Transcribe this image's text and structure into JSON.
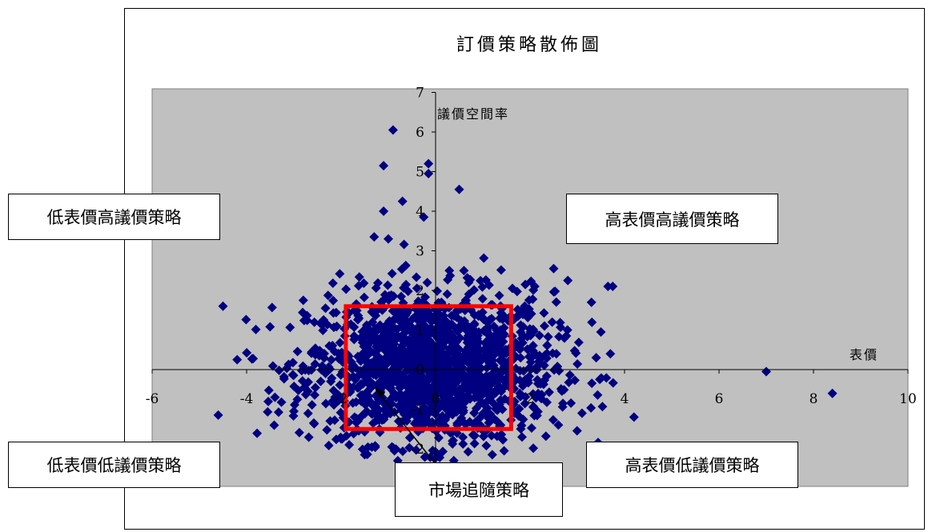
{
  "chart_data": {
    "type": "scatter",
    "title": "訂價策略散佈圖",
    "xlabel": "表價",
    "ylabel": "議價空間率",
    "xlim": [
      -6,
      10
    ],
    "ylim": [
      -3,
      7
    ],
    "x_ticks": [
      "-6",
      "-4",
      "-2",
      "0",
      "2",
      "4",
      "6",
      "8",
      "10"
    ],
    "y_ticks": [
      "-2",
      "-1",
      "0",
      "1",
      "2",
      "3",
      "4",
      "5",
      "6",
      "7"
    ],
    "plot_background": "#C0C0C0",
    "marker_color": "#000080",
    "marker": "diamond",
    "highlight_box": {
      "x": [
        -1.9,
        1.6
      ],
      "y": [
        -1.5,
        1.6
      ],
      "color": "#FF0000"
    },
    "outlier_points": [
      {
        "x": -0.9,
        "y": 6.05
      },
      {
        "x": -1.1,
        "y": 5.15
      },
      {
        "x": -0.15,
        "y": 5.2
      },
      {
        "x": -0.15,
        "y": 4.95
      },
      {
        "x": 0.5,
        "y": 4.55
      },
      {
        "x": -0.7,
        "y": 4.25
      },
      {
        "x": -1.1,
        "y": 4.0
      },
      {
        "x": -0.25,
        "y": 3.85
      },
      {
        "x": -4.5,
        "y": 1.6
      },
      {
        "x": -4.6,
        "y": -1.15
      },
      {
        "x": -4.2,
        "y": 0.25
      },
      {
        "x": 3.75,
        "y": 2.1
      },
      {
        "x": 3.65,
        "y": 2.1
      },
      {
        "x": 4.2,
        "y": -1.2
      },
      {
        "x": 7.0,
        "y": -0.05
      },
      {
        "x": 8.4,
        "y": -0.6
      },
      {
        "x": 3.5,
        "y": 0.95
      },
      {
        "x": 3.7,
        "y": 0.4
      },
      {
        "x": 2.8,
        "y": 2.25
      },
      {
        "x": 3.3,
        "y": 1.7
      },
      {
        "x": -2.8,
        "y": 1.75
      },
      {
        "x": -2.0,
        "y": -1.75
      },
      {
        "x": -1.5,
        "y": -2.15
      },
      {
        "x": 1.2,
        "y": -2.15
      },
      {
        "x": -0.8,
        "y": -2.3
      },
      {
        "x": 1.45,
        "y": -2.05
      },
      {
        "x": 2.6,
        "y": -1.4
      },
      {
        "x": 3.1,
        "y": -1.1
      },
      {
        "x": -3.0,
        "y": -1.05
      },
      {
        "x": -2.7,
        "y": -0.55
      },
      {
        "x": -3.4,
        "y": -0.7
      },
      {
        "x": 2.1,
        "y": 2.1
      },
      {
        "x": 1.9,
        "y": 2.15
      },
      {
        "x": 0.7,
        "y": 2.2
      },
      {
        "x": -1.0,
        "y": 3.3
      },
      {
        "x": -1.3,
        "y": 3.35
      },
      {
        "x": 0.6,
        "y": 2.5
      },
      {
        "x": 3.4,
        "y": 0.3
      },
      {
        "x": 2.5,
        "y": 2.55
      }
    ],
    "cluster": {
      "cx": -0.1,
      "cy": 0.05,
      "sx": 1.3,
      "sy": 0.95,
      "count": 1600
    }
  },
  "annotations": {
    "top_left": "低表價高議價策略",
    "top_right": "高表價高議價策略",
    "bottom_left": "低表價低議價策略",
    "bottom_right": "高表價低議價策略",
    "center": "市場追隨策略"
  }
}
